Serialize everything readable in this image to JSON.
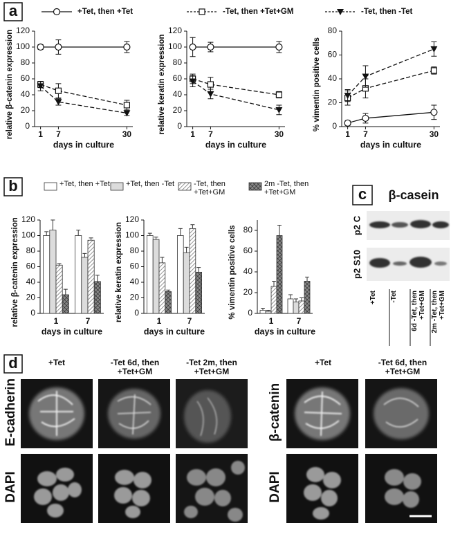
{
  "chart_data": [
    {
      "type": "line",
      "ylabel": "relative β-catenin expression",
      "xlabel": "days in culture",
      "x": [
        1,
        7,
        30
      ],
      "xlim": [
        -1,
        32
      ],
      "xticks": [
        1,
        7,
        30
      ],
      "ylim": [
        0,
        120
      ],
      "yticks": [
        0,
        20,
        40,
        60,
        80,
        100,
        120
      ],
      "series": [
        {
          "name": "+Tet, then +Tet",
          "marker": "circle",
          "dash": false,
          "values": [
            100,
            100,
            100
          ],
          "errors": [
            3,
            9,
            7
          ]
        },
        {
          "name": "-Tet, then +Tet+GM",
          "marker": "square",
          "dash": true,
          "values": [
            53,
            45,
            27
          ],
          "errors": [
            4,
            9,
            6
          ]
        },
        {
          "name": "-Tet, then -Tet",
          "marker": "triangle",
          "dash": true,
          "values": [
            51,
            31,
            17
          ],
          "errors": [
            6,
            4,
            3
          ]
        }
      ]
    },
    {
      "type": "line",
      "ylabel": "relative keratin expression",
      "xlabel": "days in culture",
      "x": [
        1,
        7,
        30
      ],
      "xlim": [
        -1,
        32
      ],
      "xticks": [
        1,
        7,
        30
      ],
      "ylim": [
        0,
        120
      ],
      "yticks": [
        0,
        20,
        40,
        60,
        80,
        100,
        120
      ],
      "series": [
        {
          "marker": "circle",
          "dash": false,
          "values": [
            100,
            100,
            100
          ],
          "errors": [
            12,
            6,
            7
          ]
        },
        {
          "marker": "square",
          "dash": true,
          "values": [
            60,
            53,
            40
          ],
          "errors": [
            6,
            9,
            4
          ]
        },
        {
          "marker": "triangle",
          "dash": true,
          "values": [
            57,
            41,
            21
          ],
          "errors": [
            7,
            6,
            6
          ]
        }
      ]
    },
    {
      "type": "line",
      "ylabel": "% vimentin positive cells",
      "xlabel": "days in culture",
      "x": [
        1,
        7,
        30
      ],
      "xlim": [
        -1,
        32
      ],
      "xticks": [
        1,
        7,
        30
      ],
      "ylim": [
        0,
        80
      ],
      "yticks": [
        0,
        20,
        40,
        60,
        80
      ],
      "series": [
        {
          "marker": "circle",
          "dash": false,
          "values": [
            3,
            7,
            12
          ],
          "errors": [
            2,
            4,
            6
          ]
        },
        {
          "marker": "square",
          "dash": true,
          "values": [
            24,
            32,
            47
          ],
          "errors": [
            6,
            8,
            3
          ]
        },
        {
          "marker": "triangle",
          "dash": true,
          "values": [
            26,
            42,
            65
          ],
          "errors": [
            5,
            9,
            6
          ]
        }
      ]
    },
    {
      "type": "bar",
      "ylabel": "relative β-catenin expression",
      "xlabel": "days in culture",
      "categories": [
        "1",
        "7"
      ],
      "ylim": [
        0,
        120
      ],
      "yticks": [
        0,
        20,
        40,
        60,
        80,
        100,
        120
      ],
      "series": [
        {
          "name": "+Tet, then +Tet",
          "pattern": "white",
          "values": [
            100,
            100
          ],
          "errors": [
            5,
            7
          ]
        },
        {
          "name": "+Tet, then -Tet",
          "pattern": "light",
          "values": [
            107,
            72
          ],
          "errors": [
            13,
            5
          ]
        },
        {
          "name": "-Tet, then +Tet+GM",
          "pattern": "hatch",
          "values": [
            62,
            94
          ],
          "errors": [
            2,
            3
          ]
        },
        {
          "name": "2m -Tet, then +Tet+GM",
          "pattern": "cross",
          "values": [
            24,
            41
          ],
          "errors": [
            7,
            8
          ]
        }
      ]
    },
    {
      "type": "bar",
      "ylabel": "relative keratin expression",
      "xlabel": "days in culture",
      "categories": [
        "1",
        "7"
      ],
      "ylim": [
        0,
        120
      ],
      "yticks": [
        0,
        20,
        40,
        60,
        80,
        100,
        120
      ],
      "series": [
        {
          "pattern": "white",
          "values": [
            100,
            100
          ],
          "errors": [
            3,
            9
          ]
        },
        {
          "pattern": "light",
          "values": [
            95,
            78
          ],
          "errors": [
            3,
            7
          ]
        },
        {
          "pattern": "hatch",
          "values": [
            65,
            109
          ],
          "errors": [
            7,
            5
          ]
        },
        {
          "pattern": "cross",
          "values": [
            28,
            53
          ],
          "errors": [
            2,
            6
          ]
        }
      ]
    },
    {
      "type": "bar",
      "ylabel": "% vimentin positive cells",
      "xlabel": "days in culture",
      "categories": [
        "1",
        "7"
      ],
      "ylim": [
        0,
        90
      ],
      "yticks": [
        0,
        20,
        40,
        60,
        80
      ],
      "series": [
        {
          "pattern": "white",
          "values": [
            3,
            14
          ],
          "errors": [
            2,
            4
          ]
        },
        {
          "pattern": "light",
          "values": [
            2,
            11
          ],
          "errors": [
            1,
            3
          ]
        },
        {
          "pattern": "hatch",
          "values": [
            26,
            12
          ],
          "errors": [
            5,
            3
          ]
        },
        {
          "pattern": "cross",
          "values": [
            75,
            31
          ],
          "errors": [
            10,
            4
          ]
        }
      ]
    }
  ],
  "panel_labels": [
    "a",
    "b",
    "c",
    "d"
  ],
  "blot": {
    "title": "β-casein",
    "rows": [
      "p2 C",
      "p2 S10"
    ],
    "columns": [
      "+Tet",
      "-Tet",
      "6d -Tet, then +Tet+GM",
      "2m -Tet, then +Tet+GM"
    ]
  },
  "micrographs": {
    "left": {
      "columns": [
        "+Tet",
        "-Tet 6d, then +Tet+GM",
        "-Tet 2m, then +Tet+GM"
      ],
      "rows": [
        "E-cadherin",
        "DAPI"
      ]
    },
    "right": {
      "columns": [
        "+Tet",
        "-Tet 6d, then +Tet+GM"
      ],
      "rows": [
        "β-catenin",
        "DAPI"
      ]
    }
  }
}
